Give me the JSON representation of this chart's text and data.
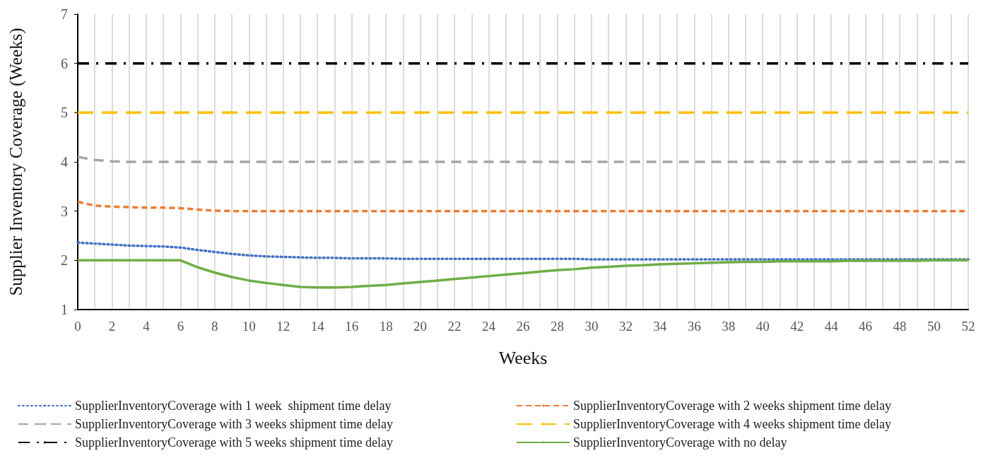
{
  "chart_data": {
    "type": "line",
    "xlabel": "Weeks",
    "ylabel": "Supplier Inventory Coverage (Weeks)",
    "x": [
      0,
      1,
      2,
      3,
      4,
      5,
      6,
      7,
      8,
      9,
      10,
      11,
      12,
      13,
      14,
      15,
      16,
      17,
      18,
      19,
      20,
      21,
      22,
      23,
      24,
      25,
      26,
      27,
      28,
      29,
      30,
      31,
      32,
      33,
      34,
      35,
      36,
      37,
      38,
      39,
      40,
      41,
      42,
      43,
      44,
      45,
      46,
      47,
      48,
      49,
      50,
      51,
      52
    ],
    "xlim": [
      0,
      52
    ],
    "xticks": [
      0,
      2,
      4,
      6,
      8,
      10,
      12,
      14,
      16,
      18,
      20,
      22,
      24,
      26,
      28,
      30,
      32,
      34,
      36,
      38,
      40,
      42,
      44,
      46,
      48,
      50,
      52
    ],
    "ylim": [
      1,
      7
    ],
    "yticks": [
      1,
      2,
      3,
      4,
      5,
      6,
      7
    ],
    "grid": "x",
    "legend": "bottom",
    "marker": "none",
    "series": [
      {
        "name": "SupplierInventoryCoverage with 1 week  shipment time delay",
        "color": "#4472c4",
        "line_style": "dotted",
        "values": [
          2.36,
          2.34,
          2.32,
          2.3,
          2.29,
          2.28,
          2.26,
          2.21,
          2.17,
          2.13,
          2.1,
          2.08,
          2.07,
          2.06,
          2.05,
          2.05,
          2.04,
          2.04,
          2.04,
          2.03,
          2.03,
          2.03,
          2.03,
          2.03,
          2.03,
          2.03,
          2.03,
          2.03,
          2.03,
          2.03,
          2.02,
          2.02,
          2.02,
          2.02,
          2.02,
          2.02,
          2.02,
          2.02,
          2.02,
          2.02,
          2.02,
          2.02,
          2.02,
          2.02,
          2.02,
          2.02,
          2.02,
          2.02,
          2.02,
          2.02,
          2.02,
          2.02,
          2.02
        ]
      },
      {
        "name": "SupplierInventoryCoverage with 2 weeks shipment time delay",
        "color": "#ed7d31",
        "line_style": "dashed",
        "values": [
          3.19,
          3.11,
          3.09,
          3.08,
          3.07,
          3.07,
          3.06,
          3.03,
          3.01,
          3,
          3,
          3,
          3,
          3,
          3,
          3,
          3,
          3,
          3,
          3,
          3,
          3,
          3,
          3,
          3,
          3,
          3,
          3,
          3,
          3,
          3,
          3,
          3,
          3,
          3,
          3,
          3,
          3,
          3,
          3,
          3,
          3,
          3,
          3,
          3,
          3,
          3,
          3,
          3,
          3,
          3,
          3,
          3
        ]
      },
      {
        "name": "SupplierInventoryCoverage with 3 weeks shipment time delay",
        "color": "#a5a5a5",
        "line_style": "dashed",
        "values": [
          4.1,
          4.04,
          4.01,
          4,
          4,
          4,
          4,
          4,
          4,
          4,
          4,
          4,
          4,
          4,
          4,
          4,
          4,
          4,
          4,
          4,
          4,
          4,
          4,
          4,
          4,
          4,
          4,
          4,
          4,
          4,
          4,
          4,
          4,
          4,
          4,
          4,
          4,
          4,
          4,
          4,
          4,
          4,
          4,
          4,
          4,
          4,
          4,
          4,
          4,
          4,
          4,
          4,
          4
        ]
      },
      {
        "name": "SupplierInventoryCoverage with 4 weeks shipment time delay",
        "color": "#ffc000",
        "line_style": "dashed",
        "values": [
          5,
          5,
          5,
          5,
          5,
          5,
          5,
          5,
          5,
          5,
          5,
          5,
          5,
          5,
          5,
          5,
          5,
          5,
          5,
          5,
          5,
          5,
          5,
          5,
          5,
          5,
          5,
          5,
          5,
          5,
          5,
          5,
          5,
          5,
          5,
          5,
          5,
          5,
          5,
          5,
          5,
          5,
          5,
          5,
          5,
          5,
          5,
          5,
          5,
          5,
          5,
          5,
          5
        ]
      },
      {
        "name": "SupplierInventoryCoverage with 5 weeks shipment time delay",
        "color": "#000000",
        "line_style": "dashed",
        "values": [
          6,
          6,
          6,
          6,
          6,
          6,
          6,
          6,
          6,
          6,
          6,
          6,
          6,
          6,
          6,
          6,
          6,
          6,
          6,
          6,
          6,
          6,
          6,
          6,
          6,
          6,
          6,
          6,
          6,
          6,
          6,
          6,
          6,
          6,
          6,
          6,
          6,
          6,
          6,
          6,
          6,
          6,
          6,
          6,
          6,
          6,
          6,
          6,
          6,
          6,
          6,
          6,
          6
        ]
      },
      {
        "name": "SupplierInventoryCoverage with no delay",
        "color": "#70ad47",
        "line_style": "solid",
        "values": [
          2,
          2,
          2,
          2,
          2,
          2,
          2,
          1.86,
          1.75,
          1.66,
          1.59,
          1.54,
          1.5,
          1.46,
          1.45,
          1.45,
          1.46,
          1.48,
          1.5,
          1.53,
          1.56,
          1.59,
          1.62,
          1.65,
          1.68,
          1.71,
          1.74,
          1.77,
          1.8,
          1.82,
          1.85,
          1.87,
          1.89,
          1.9,
          1.92,
          1.93,
          1.94,
          1.95,
          1.96,
          1.97,
          1.97,
          1.98,
          1.98,
          1.98,
          1.98,
          1.99,
          1.99,
          1.99,
          1.99,
          1.99,
          2,
          2,
          2
        ]
      }
    ]
  }
}
